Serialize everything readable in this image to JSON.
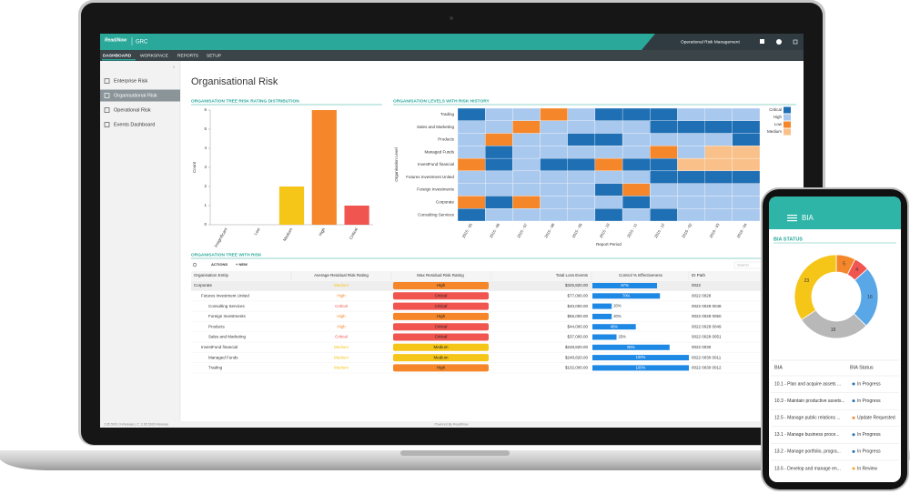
{
  "app": {
    "logo": "ReadiNow",
    "product": "GRC",
    "workspace": "Operational Risk Management",
    "nav": [
      "DASHBOARD",
      "WORKSPACE",
      "REPORTS",
      "SETUP"
    ],
    "sidebar": [
      "Enterprise Risk",
      "Organisational Risk",
      "Operational Risk",
      "Events Dashboard"
    ],
    "page_title": "Organisational Risk",
    "footer_version": "2.65.5001.0-Release | C: 2.65.5002-Release",
    "footer_powered": "Powered By ReadiNow"
  },
  "chart_data": [
    {
      "type": "bar",
      "title": "ORGANISATION TREE RISK RATING DISTRIBUTION",
      "y_label": "Count",
      "categories": [
        "Insignificant",
        "Low",
        "Medium",
        "High",
        "Critical"
      ],
      "values": [
        0,
        0,
        2,
        6,
        1
      ],
      "colors": [
        "#5aa7e8",
        "#8bc34a",
        "#f5c518",
        "#f5872a",
        "#f0554f"
      ],
      "ylim": [
        0,
        6
      ],
      "yticks": [
        0,
        1,
        2,
        3,
        4,
        5,
        6
      ]
    },
    {
      "type": "heatmap",
      "title": "ORGANISATION LEVELS WITH RISK HISTORY",
      "x_label": "Report Period",
      "y_label": "Organisation Level",
      "rows": [
        "Trading",
        "Sales and Marketing",
        "Products",
        "Managed Funds",
        "InvestFund financial",
        "Futures Investment United",
        "Foreign Investments",
        "Corporate",
        "Consulting Services"
      ],
      "columns": [
        "2015 - 05",
        "2015 - 06",
        "2015 - 07",
        "2015 - 08",
        "2015 - 09",
        "2015 - 10",
        "2015 - 11",
        "2015 - 12",
        "2016 - 02",
        "2016 - 03",
        "2016 - 04"
      ],
      "legend": [
        {
          "name": "Critical",
          "color": "#1f6fb5"
        },
        {
          "name": "High",
          "color": "#a9c8ee"
        },
        {
          "name": "Low",
          "color": "#f5872a"
        },
        {
          "name": "Medium",
          "color": "#f9c08a"
        }
      ],
      "cells": [
        [
          "Critical",
          "High",
          "High",
          "Low",
          "High",
          "Critical",
          "Critical",
          "Critical",
          "High",
          "High",
          "High"
        ],
        [
          "High",
          "High",
          "Low",
          "High",
          "High",
          "High",
          "High",
          "Critical",
          "Critical",
          "Critical",
          "Critical"
        ],
        [
          "High",
          "Low",
          "High",
          "High",
          "Critical",
          "Critical",
          "High",
          "High",
          "High",
          "High",
          "Critical"
        ],
        [
          "High",
          "Critical",
          "High",
          "High",
          "High",
          "High",
          "High",
          "Low",
          "High",
          "Medium",
          "Medium"
        ],
        [
          "Low",
          "Critical",
          "High",
          "Critical",
          "Critical",
          "Low",
          "Critical",
          "Critical",
          "Medium",
          "Medium",
          "Medium"
        ],
        [
          "High",
          "High",
          "High",
          "High",
          "High",
          "High",
          "High",
          "Critical",
          "Critical",
          "Critical",
          "Critical"
        ],
        [
          "High",
          "High",
          "High",
          "High",
          "High",
          "Critical",
          "Low",
          "High",
          "High",
          "High",
          "High"
        ],
        [
          "Low",
          "Critical",
          "Low",
          "High",
          "High",
          "High",
          "Critical",
          "High",
          "High",
          "High",
          "High"
        ],
        [
          "Critical",
          "High",
          "High",
          "High",
          "High",
          "Critical",
          "High",
          "Critical",
          "High",
          "High",
          "High"
        ]
      ]
    },
    {
      "type": "pie",
      "title": "BIA STATUS",
      "values": [
        5,
        4,
        16,
        19,
        23
      ],
      "colors": [
        "#f5872a",
        "#f0554f",
        "#5aa7e8",
        "#b8b8b8",
        "#f5c518"
      ]
    }
  ],
  "table": {
    "title": "ORGANISATION TREE WITH RISK",
    "actions": "ACTIONS",
    "new": "+ NEW",
    "search": "Search",
    "columns": [
      "Organisation Entity",
      "Average Residual Risk Rating",
      "Max Residual Risk Rating",
      "Total Loss Events",
      "Control % Effectiveness",
      "ID Path"
    ],
    "rating_colors": {
      "Critical": "#f0554f",
      "High": "#f5872a",
      "Medium": "#f5c518"
    },
    "effectiveness_scale": [
      0,
      100
    ],
    "bar_color": "#1e88e5",
    "rows": [
      {
        "entity": "Corporate",
        "avg": "Medium",
        "max": "High",
        "loss": "$325,820.00",
        "effectiveness": {
          "value": 67,
          "label": "67%"
        },
        "id_path": "0022"
      },
      {
        "entity": "Futures Investment United",
        "avg": "High",
        "max": "Critical",
        "loss": "$77,000.00",
        "effectiveness": {
          "value": 70,
          "label": "70%"
        },
        "id_path": "0022 0028"
      },
      {
        "entity": "Consulting Services",
        "avg": "Critical",
        "max": "Critical",
        "loss": "$40,000.00",
        "effectiveness": {
          "value": 20,
          "label": "20%"
        },
        "id_path": "0022 0028 0048"
      },
      {
        "entity": "Foreign Investments",
        "avg": "High",
        "max": "High",
        "loss": "$56,000.00",
        "effectiveness": {
          "value": 20,
          "label": "20%"
        },
        "id_path": "0022 0028 0050"
      },
      {
        "entity": "Products",
        "avg": "High",
        "max": "Critical",
        "loss": "$44,000.00",
        "effectiveness": {
          "value": 45,
          "label": "45%"
        },
        "id_path": "0022 0028 0049"
      },
      {
        "entity": "Sales and Marketing",
        "avg": "Critical",
        "max": "Critical",
        "loss": "$37,000.00",
        "effectiveness": {
          "value": 25,
          "label": "25%"
        },
        "id_path": "0022 0028 0051"
      },
      {
        "entity": "InvestFund financial",
        "avg": "Medium",
        "max": "Medium",
        "loss": "$248,820.00",
        "effectiveness": {
          "value": 80,
          "label": "80%"
        },
        "id_path": "0022 0030"
      },
      {
        "entity": "Managed Funds",
        "avg": "Medium",
        "max": "Medium",
        "loss": "$248,820.00",
        "effectiveness": {
          "value": 100,
          "label": "100%"
        },
        "id_path": "0022 0030 0011"
      },
      {
        "entity": "Trading",
        "avg": "Medium",
        "max": "High",
        "loss": "$102,000.00",
        "effectiveness": {
          "value": 100,
          "label": "100%"
        },
        "id_path": "0022 0030 0012"
      }
    ]
  },
  "phone": {
    "title": "BIA",
    "columns": [
      "BIA",
      "BIA Status"
    ],
    "status_colors": {
      "In Progress": "#1f6fb5",
      "Update Requested": "#f5872a",
      "In Review": "#f5a623"
    },
    "rows": [
      {
        "bia": "10.1 - Plan and acquire assets ...",
        "status": "In Progress"
      },
      {
        "bia": "10.3 - Maintain productive assets...",
        "status": "In Progress"
      },
      {
        "bia": "12.5 - Manage public relations ...",
        "status": "Update Requested"
      },
      {
        "bia": "13.1 - Manage business proce...",
        "status": "In Progress"
      },
      {
        "bia": "13.2 - Manage portfolio, progra...",
        "status": "In Progress"
      },
      {
        "bia": "13.5 - Develop and manage en...",
        "status": "In Review"
      }
    ]
  }
}
